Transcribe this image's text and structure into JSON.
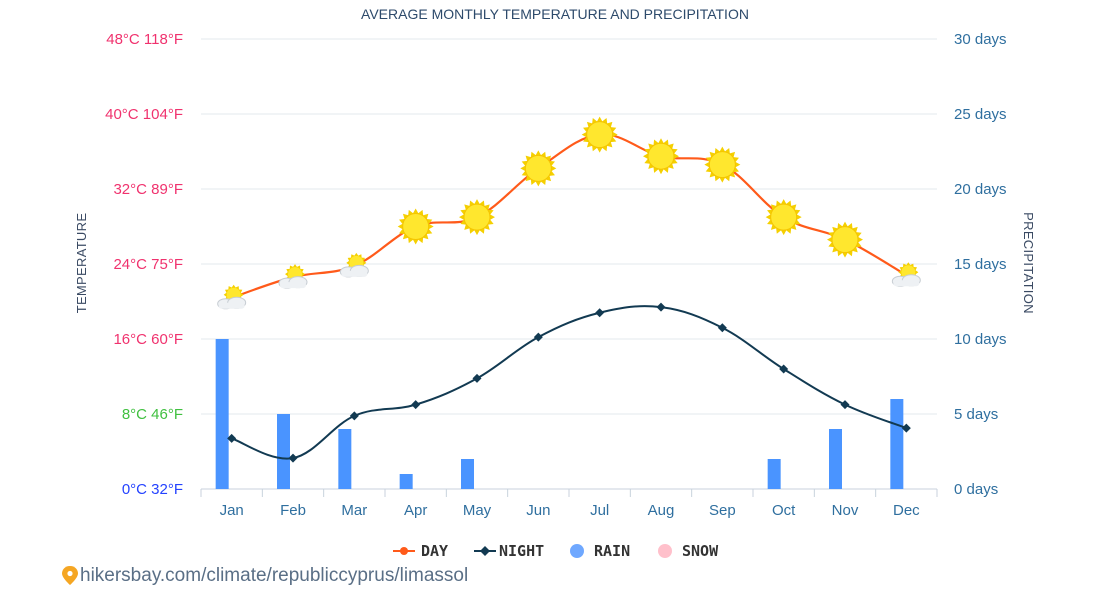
{
  "chart_data": {
    "type": "line",
    "title": "AVERAGE MONTHLY TEMPERATURE AND PRECIPITATION",
    "categories": [
      "Jan",
      "Feb",
      "Mar",
      "Apr",
      "May",
      "Jun",
      "Jul",
      "Aug",
      "Sep",
      "Oct",
      "Nov",
      "Dec"
    ],
    "left_axis": {
      "title": "TEMPERATURE",
      "range_c": [
        0,
        48
      ],
      "ticks": [
        {
          "c": 0,
          "label": "0°C 32°F",
          "color": "#2442ff"
        },
        {
          "c": 8,
          "label": "8°C 46°F",
          "color": "#40c040"
        },
        {
          "c": 16,
          "label": "16°C 60°F",
          "color": "#f0326e"
        },
        {
          "c": 24,
          "label": "24°C 75°F",
          "color": "#f0326e"
        },
        {
          "c": 32,
          "label": "32°C 89°F",
          "color": "#f0326e"
        },
        {
          "c": 40,
          "label": "40°C 104°F",
          "color": "#f0326e"
        },
        {
          "c": 48,
          "label": "48°C 118°F",
          "color": "#f0326e"
        }
      ]
    },
    "right_axis": {
      "title": "PRECIPITATION",
      "range_days": [
        0,
        30
      ],
      "ticks": [
        {
          "v": 0,
          "label": "0 days"
        },
        {
          "v": 5,
          "label": "5 days"
        },
        {
          "v": 10,
          "label": "10 days"
        },
        {
          "v": 15,
          "label": "15 days"
        },
        {
          "v": 20,
          "label": "20 days"
        },
        {
          "v": 25,
          "label": "25 days"
        },
        {
          "v": 30,
          "label": "30 days"
        }
      ]
    },
    "series": [
      {
        "name": "DAY",
        "unit": "°C",
        "color": "#ff5a1a",
        "values": [
          20.4,
          22.6,
          23.8,
          28.0,
          29.0,
          34.2,
          37.8,
          35.5,
          34.6,
          29.0,
          26.6,
          22.8
        ],
        "weather_icons": [
          "sun-cloud",
          "sun-cloud",
          "sun-cloud",
          "sun",
          "sun",
          "sun",
          "sun",
          "sun",
          "sun",
          "sun",
          "sun",
          "sun-cloud"
        ]
      },
      {
        "name": "NIGHT",
        "unit": "°C",
        "color": "#123a52",
        "values": [
          5.4,
          3.3,
          7.8,
          9.0,
          11.8,
          16.2,
          18.8,
          19.4,
          17.2,
          12.8,
          9.0,
          6.5
        ]
      },
      {
        "name": "RAIN",
        "unit": "days",
        "color": "#4a94ff",
        "values": [
          10,
          5,
          4,
          1,
          2,
          0,
          0,
          0,
          0,
          2,
          4,
          6
        ]
      },
      {
        "name": "SNOW",
        "unit": "days",
        "color": "#ffc0cb",
        "values": [
          0,
          0,
          0,
          0,
          0,
          0,
          0,
          0,
          0,
          0,
          0,
          0
        ]
      }
    ],
    "legend_position": "bottom-center",
    "grid": true
  },
  "footer": {
    "source": "hikersbay.com/climate/republiccyprus/limassol",
    "pin_icon": "location-pin-icon"
  }
}
